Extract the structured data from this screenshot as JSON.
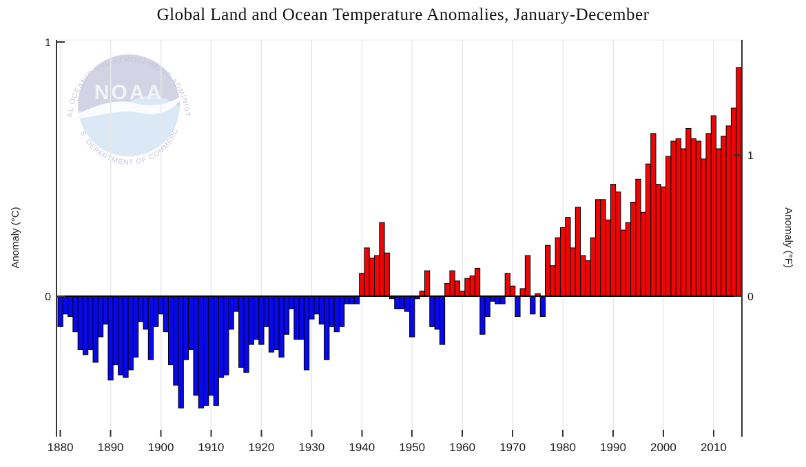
{
  "title": "Global Land and Ocean Temperature Anomalies, January-December",
  "y_axis_left": {
    "label": "Anomaly (°C)",
    "ticks": [
      "1",
      "0"
    ]
  },
  "y_axis_right": {
    "label": "Anomaly (°F)",
    "ticks": [
      "1",
      "0"
    ]
  },
  "x_axis": {
    "tick_years": [
      1880,
      1890,
      1900,
      1910,
      1920,
      1930,
      1940,
      1950,
      1960,
      1970,
      1980,
      1990,
      2000,
      2010
    ]
  },
  "logo": {
    "top_arc_text": "NATIONAL OCEANIC AND ATMOSPHERIC ADMINISTRATION",
    "bottom_arc_text": "U.S. DEPARTMENT OF COMMERCE",
    "acronym": "NOAA"
  },
  "colors": {
    "positive_bar": "#ee0505",
    "negative_bar": "#0808e8",
    "bar_outline": "#000000",
    "axis": "#333333",
    "gridline": "#e8e8e8",
    "zero_line": "#000000",
    "title_text": "#111111",
    "logo_top_half": "#d3d3e5",
    "logo_bottom_half": "#dbe9f7",
    "logo_bird": "#fbfcfe"
  },
  "chart_data": {
    "type": "bar",
    "title": "Global Land and Ocean Temperature Anomalies, January-December",
    "xlabel": "",
    "ylabel_left": "Anomaly (°C)",
    "ylabel_right": "Anomaly (°F)",
    "units": "°C anomaly vs 20th-century average",
    "ylim_c": [
      -0.53,
      1.01
    ],
    "y_ticks_c": [
      0,
      1
    ],
    "y_ticks_f": [
      0,
      1
    ],
    "x_ticks": [
      1880,
      1890,
      1900,
      1910,
      1920,
      1930,
      1940,
      1950,
      1960,
      1970,
      1980,
      1990,
      2000,
      2010
    ],
    "grid": "vertical-decade-lines",
    "legend": "none",
    "positive_color": "#ee0505",
    "negative_color": "#0808e8",
    "years": [
      1880,
      1881,
      1882,
      1883,
      1884,
      1885,
      1886,
      1887,
      1888,
      1889,
      1890,
      1891,
      1892,
      1893,
      1894,
      1895,
      1896,
      1897,
      1898,
      1899,
      1900,
      1901,
      1902,
      1903,
      1904,
      1905,
      1906,
      1907,
      1908,
      1909,
      1910,
      1911,
      1912,
      1913,
      1914,
      1915,
      1916,
      1917,
      1918,
      1919,
      1920,
      1921,
      1922,
      1923,
      1924,
      1925,
      1926,
      1927,
      1928,
      1929,
      1930,
      1931,
      1932,
      1933,
      1934,
      1935,
      1936,
      1937,
      1938,
      1939,
      1940,
      1941,
      1942,
      1943,
      1944,
      1945,
      1946,
      1947,
      1948,
      1949,
      1950,
      1951,
      1952,
      1953,
      1954,
      1955,
      1956,
      1957,
      1958,
      1959,
      1960,
      1961,
      1962,
      1963,
      1964,
      1965,
      1966,
      1967,
      1968,
      1969,
      1970,
      1971,
      1972,
      1973,
      1974,
      1975,
      1976,
      1977,
      1978,
      1979,
      1980,
      1981,
      1982,
      1983,
      1984,
      1985,
      1986,
      1987,
      1988,
      1989,
      1990,
      1991,
      1992,
      1993,
      1994,
      1995,
      1996,
      1997,
      1998,
      1999,
      2000,
      2001,
      2002,
      2003,
      2004,
      2005,
      2006,
      2007,
      2008,
      2009,
      2010,
      2011,
      2012,
      2013,
      2014,
      2015
    ],
    "values_c": [
      -0.12,
      -0.07,
      -0.08,
      -0.14,
      -0.21,
      -0.23,
      -0.21,
      -0.26,
      -0.16,
      -0.11,
      -0.33,
      -0.27,
      -0.31,
      -0.32,
      -0.29,
      -0.24,
      -0.1,
      -0.13,
      -0.25,
      -0.12,
      -0.07,
      -0.14,
      -0.27,
      -0.35,
      -0.44,
      -0.25,
      -0.21,
      -0.39,
      -0.44,
      -0.43,
      -0.39,
      -0.43,
      -0.32,
      -0.31,
      -0.13,
      -0.06,
      -0.28,
      -0.3,
      -0.19,
      -0.17,
      -0.19,
      -0.12,
      -0.22,
      -0.21,
      -0.24,
      -0.15,
      -0.05,
      -0.17,
      -0.17,
      -0.29,
      -0.09,
      -0.07,
      -0.11,
      -0.25,
      -0.12,
      -0.14,
      -0.12,
      -0.03,
      -0.03,
      -0.03,
      0.09,
      0.19,
      0.15,
      0.16,
      0.29,
      0.17,
      -0.01,
      -0.05,
      -0.05,
      -0.06,
      -0.16,
      -0.01,
      0.02,
      0.1,
      -0.12,
      -0.13,
      -0.19,
      0.05,
      0.1,
      0.06,
      0.02,
      0.07,
      0.08,
      0.11,
      -0.15,
      -0.08,
      -0.02,
      -0.03,
      -0.03,
      0.09,
      0.04,
      -0.08,
      0.03,
      0.16,
      -0.07,
      0.01,
      -0.08,
      0.2,
      0.12,
      0.23,
      0.27,
      0.31,
      0.19,
      0.35,
      0.16,
      0.14,
      0.23,
      0.38,
      0.38,
      0.3,
      0.44,
      0.41,
      0.26,
      0.29,
      0.37,
      0.46,
      0.33,
      0.52,
      0.64,
      0.44,
      0.43,
      0.55,
      0.61,
      0.62,
      0.58,
      0.66,
      0.62,
      0.61,
      0.54,
      0.64,
      0.71,
      0.58,
      0.63,
      0.67,
      0.74,
      0.9
    ]
  }
}
